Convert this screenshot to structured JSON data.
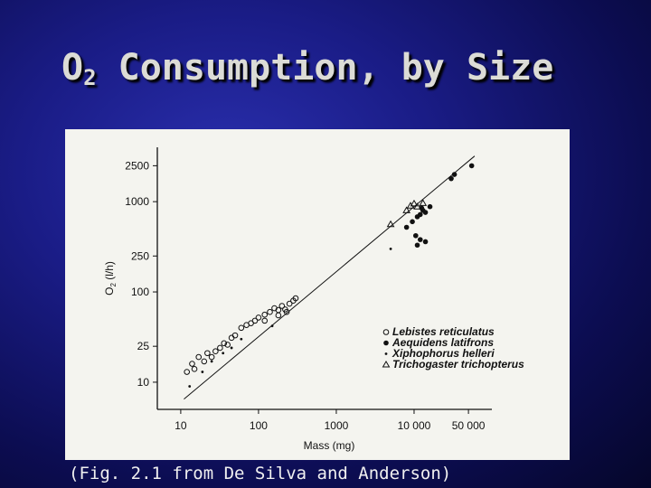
{
  "slide": {
    "title_main": "O",
    "title_sub": "2",
    "title_rest": " Consumption, by Size",
    "caption": "(Fig. 2.1 from De Silva and Anderson)"
  },
  "chart_data": {
    "type": "scatter",
    "title": "",
    "xlabel": "Mass (mg)",
    "ylabel_main": "O",
    "ylabel_sub": "2",
    "ylabel_rest": " (l/h)",
    "x_scale": "log",
    "y_scale": "log",
    "xlim": [
      5,
      100000
    ],
    "ylim": [
      5,
      4000
    ],
    "x_ticks": [
      10,
      100,
      1000,
      10000,
      50000
    ],
    "x_tick_labels": [
      "10",
      "100",
      "1000",
      "10 000",
      "50 000"
    ],
    "y_ticks": [
      10,
      25,
      100,
      250,
      1000,
      2500
    ],
    "y_tick_labels": [
      "10",
      "25",
      "100",
      "250",
      "1000",
      "2500"
    ],
    "grid": false,
    "legend_position": "bottom-right",
    "regression_line": {
      "x": [
        11,
        60000
      ],
      "y": [
        6.5,
        3200
      ]
    },
    "series": [
      {
        "name": "Lebistes reticulatus",
        "marker": "open-circle",
        "points": [
          [
            12,
            13
          ],
          [
            14,
            16
          ],
          [
            15,
            14
          ],
          [
            17,
            19
          ],
          [
            20,
            17
          ],
          [
            22,
            21
          ],
          [
            25,
            19
          ],
          [
            28,
            22
          ],
          [
            32,
            24
          ],
          [
            36,
            27
          ],
          [
            40,
            26
          ],
          [
            45,
            31
          ],
          [
            50,
            33
          ],
          [
            60,
            40
          ],
          [
            70,
            43
          ],
          [
            80,
            45
          ],
          [
            90,
            48
          ],
          [
            100,
            52
          ],
          [
            120,
            56
          ],
          [
            140,
            60
          ],
          [
            160,
            66
          ],
          [
            180,
            63
          ],
          [
            200,
            70
          ],
          [
            220,
            64
          ],
          [
            250,
            74
          ],
          [
            280,
            80
          ],
          [
            300,
            85
          ],
          [
            120,
            48
          ],
          [
            180,
            55
          ],
          [
            230,
            60
          ]
        ]
      },
      {
        "name": "Aequidens latifrons",
        "marker": "filled-circle",
        "points": [
          [
            8000,
            520
          ],
          [
            9500,
            600
          ],
          [
            11000,
            680
          ],
          [
            12000,
            720
          ],
          [
            13000,
            800
          ],
          [
            14000,
            760
          ],
          [
            12500,
            850
          ],
          [
            16000,
            880
          ],
          [
            10500,
            420
          ],
          [
            12000,
            380
          ],
          [
            14000,
            360
          ],
          [
            11000,
            330
          ],
          [
            30000,
            1800
          ],
          [
            33000,
            2000
          ],
          [
            55000,
            2500
          ]
        ]
      },
      {
        "name": "Xiphophorus helleri",
        "marker": "small-dot",
        "points": [
          [
            13,
            9
          ],
          [
            19,
            13
          ],
          [
            25,
            17
          ],
          [
            35,
            21
          ],
          [
            45,
            24
          ],
          [
            60,
            30
          ],
          [
            150,
            42
          ],
          [
            5000,
            300
          ]
        ]
      },
      {
        "name": "Trichogaster trichopterus",
        "marker": "open-triangle",
        "points": [
          [
            5000,
            560
          ],
          [
            8000,
            800
          ],
          [
            9000,
            900
          ],
          [
            10000,
            950
          ],
          [
            11000,
            880
          ],
          [
            13000,
            960
          ]
        ]
      }
    ]
  }
}
